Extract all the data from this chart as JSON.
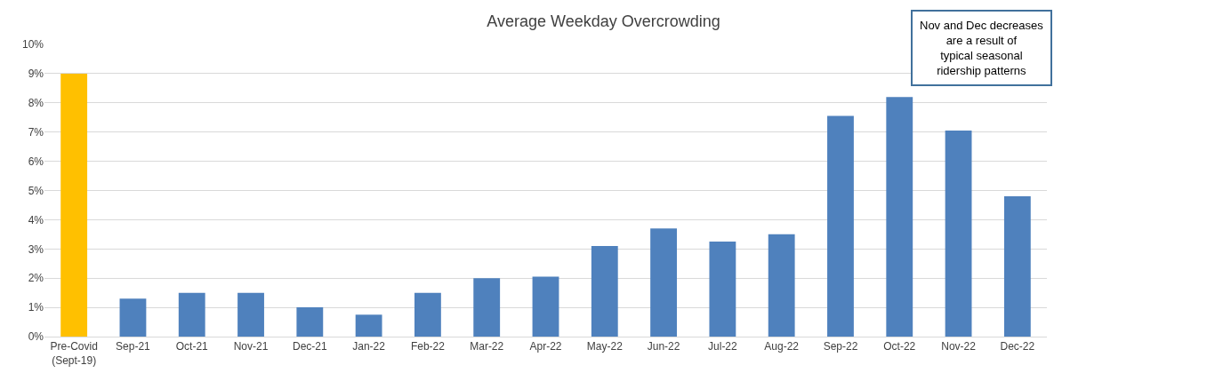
{
  "chart_data": {
    "type": "bar",
    "title": "Average Weekday Overcrowding",
    "categories": [
      "Pre-Covid (Sept-19)",
      "Sep-21",
      "Oct-21",
      "Nov-21",
      "Dec-21",
      "Jan-22",
      "Feb-22",
      "Mar-22",
      "Apr-22",
      "May-22",
      "Jun-22",
      "Jul-22",
      "Aug-22",
      "Sep-22",
      "Oct-22",
      "Nov-22",
      "Dec-22"
    ],
    "values": [
      9.0,
      1.3,
      1.5,
      1.5,
      1.0,
      0.75,
      1.5,
      2.0,
      2.05,
      3.1,
      3.7,
      3.25,
      3.5,
      7.55,
      8.2,
      7.05,
      4.8
    ],
    "colors": [
      "#ffc000",
      "#4f81bd",
      "#4f81bd",
      "#4f81bd",
      "#4f81bd",
      "#4f81bd",
      "#4f81bd",
      "#4f81bd",
      "#4f81bd",
      "#4f81bd",
      "#4f81bd",
      "#4f81bd",
      "#4f81bd",
      "#4f81bd",
      "#4f81bd",
      "#4f81bd",
      "#4f81bd"
    ],
    "ylim": [
      0,
      10
    ],
    "yticks": [
      {
        "value": 0,
        "label": "0%"
      },
      {
        "value": 1,
        "label": "1%"
      },
      {
        "value": 2,
        "label": "2%"
      },
      {
        "value": 3,
        "label": "3%"
      },
      {
        "value": 4,
        "label": "4%"
      },
      {
        "value": 5,
        "label": "5%"
      },
      {
        "value": 6,
        "label": "6%"
      },
      {
        "value": 7,
        "label": "7%"
      },
      {
        "value": 8,
        "label": "8%"
      },
      {
        "value": 9,
        "label": "9%"
      },
      {
        "value": 10,
        "label": "10%"
      }
    ],
    "grid": "y",
    "legend": false,
    "annotations": [
      "Nov and Dec decreases are a result of typical seasonal ridership patterns"
    ]
  }
}
